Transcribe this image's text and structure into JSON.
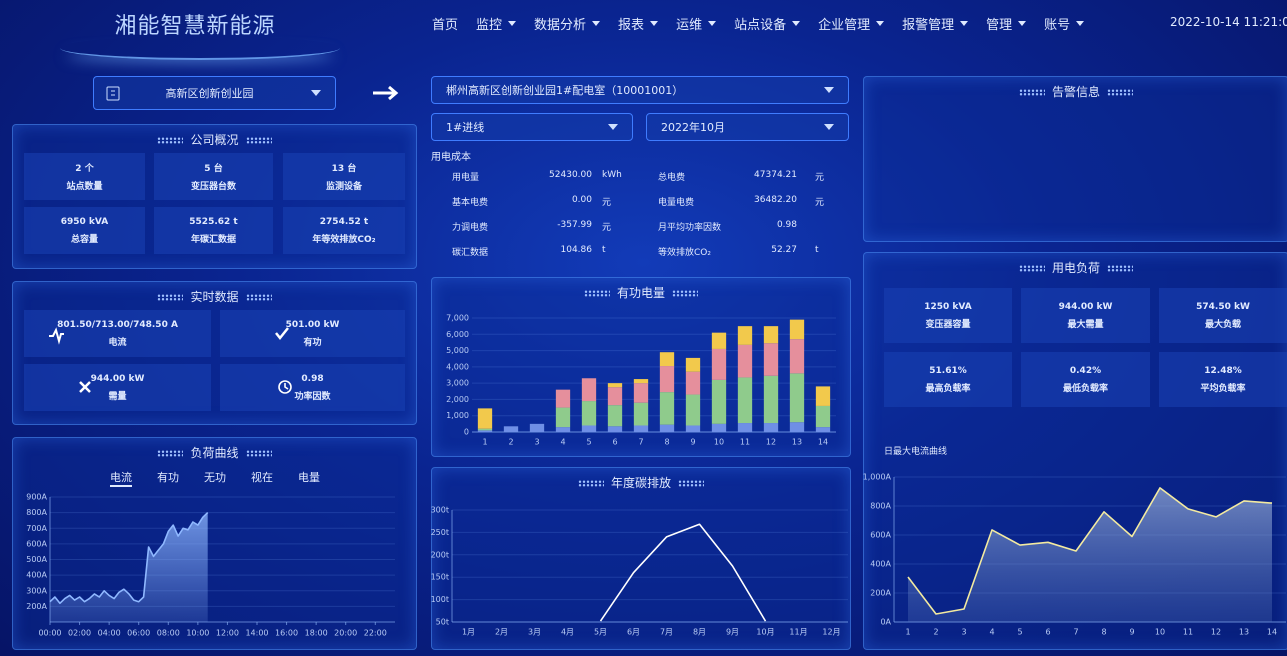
{
  "header": {
    "title": "湘能智慧新能源",
    "nav": [
      "首页",
      "监控",
      "数据分析",
      "报表",
      "运维",
      "站点设备",
      "企业管理",
      "报警管理",
      "管理",
      "账号"
    ],
    "datetime": "2022-10-14 11:21:09"
  },
  "selectors": {
    "site": "高新区创新创业园",
    "room": "郴州高新区创新创业园1#配电室（10001001）",
    "line": "1#进线",
    "month": "2022年10月"
  },
  "company_overview": {
    "title": "公司概况",
    "items": [
      {
        "value": "2 个",
        "label": "站点数量"
      },
      {
        "value": "5 台",
        "label": "变压器台数"
      },
      {
        "value": "13 台",
        "label": "监测设备"
      },
      {
        "value": "6950 kVA",
        "label": "总容量"
      },
      {
        "value": "5525.62 t",
        "label": "年碳汇数据"
      },
      {
        "value": "2754.52 t",
        "label": "年等效排放CO₂"
      }
    ]
  },
  "realtime": {
    "title": "实时数据",
    "items": [
      {
        "value": "801.50/713.00/748.50 A",
        "label": "电流"
      },
      {
        "value": "501.00 kW",
        "label": "有功"
      },
      {
        "value": "944.00 kW",
        "label": "需量"
      },
      {
        "value": "0.98",
        "label": "功率因数"
      }
    ]
  },
  "cost": {
    "title": "用电成本",
    "items": [
      {
        "label": "用电量",
        "value": "52430.00",
        "unit": "kWh"
      },
      {
        "label": "总电费",
        "value": "47374.21",
        "unit": "元"
      },
      {
        "label": "基本电费",
        "value": "0.00",
        "unit": "元"
      },
      {
        "label": "电量电费",
        "value": "36482.20",
        "unit": "元"
      },
      {
        "label": "力调电费",
        "value": "-357.99",
        "unit": "元"
      },
      {
        "label": "月平均功率因数",
        "value": "0.98"
      },
      {
        "label": "碳汇数据",
        "value": "104.86",
        "unit": "t"
      },
      {
        "label": "等效排放CO₂",
        "value": "52.27",
        "unit": "t"
      }
    ]
  },
  "alarm": {
    "title": "告警信息"
  },
  "power_load": {
    "title": "用电负荷",
    "items": [
      {
        "value": "1250 kVA",
        "label": "变压器容量"
      },
      {
        "value": "944.00 kW",
        "label": "最大需量"
      },
      {
        "value": "574.50 kW",
        "label": "最大负载"
      },
      {
        "value": "51.61%",
        "label": "最高负载率"
      },
      {
        "value": "0.42%",
        "label": "最低负载率"
      },
      {
        "value": "12.48%",
        "label": "平均负载率"
      }
    ]
  },
  "chart_data": [
    {
      "type": "area",
      "title": "负荷曲线",
      "tabs": [
        "电流",
        "有功",
        "无功",
        "视在",
        "电量"
      ],
      "color": "#8fb8ff",
      "x": [
        0,
        20,
        40,
        60,
        80,
        100,
        120,
        140,
        160,
        180,
        200,
        220,
        240,
        260,
        280,
        300,
        320,
        340,
        360,
        380,
        400,
        420,
        440,
        460,
        480,
        500,
        520,
        540,
        560,
        580,
        600,
        620,
        640
      ],
      "values": [
        230,
        260,
        220,
        250,
        270,
        240,
        260,
        230,
        250,
        280,
        260,
        300,
        270,
        250,
        290,
        310,
        280,
        240,
        230,
        260,
        580,
        520,
        560,
        600,
        680,
        720,
        650,
        700,
        690,
        740,
        720,
        770,
        800
      ],
      "xlim": [
        0,
        1400
      ],
      "xticks": [
        {
          "value": 0,
          "label": "00:00"
        },
        {
          "value": 120,
          "label": "02:00"
        },
        {
          "value": 240,
          "label": "04:00"
        },
        {
          "value": 360,
          "label": "06:00"
        },
        {
          "value": 480,
          "label": "08:00"
        },
        {
          "value": 600,
          "label": "10:00"
        },
        {
          "value": 720,
          "label": "12:00"
        },
        {
          "value": 840,
          "label": "14:00"
        },
        {
          "value": 960,
          "label": "16:00"
        },
        {
          "value": 1080,
          "label": "18:00"
        },
        {
          "value": 1200,
          "label": "20:00"
        },
        {
          "value": 1320,
          "label": "22:00"
        }
      ],
      "ylim": [
        100,
        900
      ],
      "yticks": [
        {
          "value": 200,
          "label": "200A"
        },
        {
          "value": 300,
          "label": "300A"
        },
        {
          "value": 400,
          "label": "400A"
        },
        {
          "value": 500,
          "label": "500A"
        },
        {
          "value": 600,
          "label": "600A"
        },
        {
          "value": 700,
          "label": "700A"
        },
        {
          "value": 800,
          "label": "800A"
        },
        {
          "value": 900,
          "label": "900A"
        }
      ]
    },
    {
      "type": "bar",
      "title": "有功电量",
      "categories": [
        "1",
        "2",
        "3",
        "4",
        "5",
        "6",
        "7",
        "8",
        "9",
        "10",
        "11",
        "12",
        "13",
        "14"
      ],
      "series": [
        {
          "color": "#6f8fe6",
          "values": [
            100,
            350,
            500,
            300,
            400,
            350,
            400,
            450,
            400,
            500,
            550,
            550,
            600,
            300
          ]
        },
        {
          "color": "#8fcb8c",
          "values": [
            100,
            0,
            0,
            1200,
            1500,
            1300,
            1400,
            2000,
            1900,
            2700,
            2800,
            2900,
            3000,
            1300
          ]
        },
        {
          "color": "#e58f9c",
          "values": [
            0,
            0,
            0,
            1100,
            1400,
            1100,
            1200,
            1600,
            1400,
            1900,
            2000,
            2000,
            2100,
            0
          ]
        },
        {
          "color": "#f2c94c",
          "values": [
            1250,
            0,
            0,
            0,
            0,
            250,
            250,
            850,
            850,
            1000,
            1150,
            1050,
            1200,
            1200
          ]
        }
      ],
      "ylim": [
        0,
        7000
      ],
      "yticks": [
        0,
        {
          "value": 1000,
          "label": "1,000"
        },
        {
          "value": 2000,
          "label": "2,000"
        },
        {
          "value": 3000,
          "label": "3,000"
        },
        {
          "value": 4000,
          "label": "4,000"
        },
        {
          "value": 5000,
          "label": "5,000"
        },
        {
          "value": 6000,
          "label": "6,000"
        },
        {
          "value": 7000,
          "label": "7,000"
        }
      ]
    },
    {
      "type": "line",
      "title": "年度碳排放",
      "color": "#ffffff",
      "categories": [
        "1月",
        "2月",
        "3月",
        "4月",
        "5月",
        "6月",
        "7月",
        "8月",
        "9月",
        "10月",
        "11月",
        "12月"
      ],
      "values": [
        null,
        null,
        null,
        null,
        52,
        160,
        240,
        268,
        175,
        52,
        null,
        null
      ],
      "ylim": [
        50,
        300
      ],
      "yticks": [
        {
          "value": 50,
          "label": "50t"
        },
        {
          "value": 100,
          "label": "100t"
        },
        {
          "value": 150,
          "label": "150t"
        },
        {
          "value": 200,
          "label": "200t"
        },
        {
          "value": 250,
          "label": "250t"
        },
        {
          "value": 300,
          "label": "300t"
        }
      ]
    },
    {
      "type": "area",
      "title": "日最大电流曲线",
      "color": "#f3eaa0",
      "categories": [
        "1",
        "2",
        "3",
        "4",
        "5",
        "6",
        "7",
        "8",
        "9",
        "10",
        "11",
        "12",
        "13",
        "14"
      ],
      "values": [
        310,
        55,
        90,
        635,
        530,
        550,
        490,
        760,
        590,
        925,
        780,
        725,
        835,
        820
      ],
      "ylim": [
        0,
        1000
      ],
      "yticks": [
        {
          "value": 0,
          "label": "0A"
        },
        {
          "value": 200,
          "label": "200A"
        },
        {
          "value": 400,
          "label": "400A"
        },
        {
          "value": 600,
          "label": "600A"
        },
        {
          "value": 800,
          "label": "800A"
        },
        {
          "value": 1000,
          "label": "1,000A"
        }
      ]
    }
  ]
}
